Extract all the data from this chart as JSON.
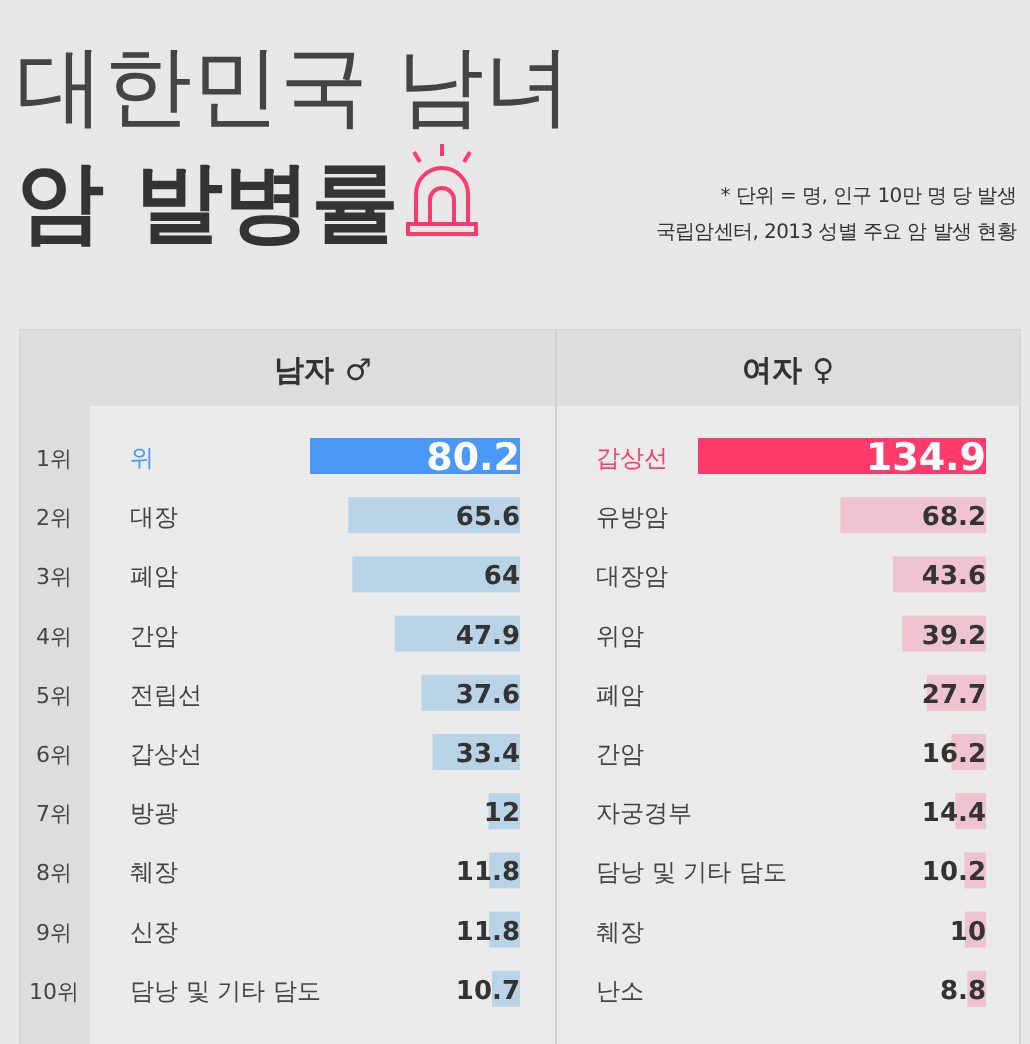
{
  "chart_data": [
    {
      "type": "other",
      "title": "대한민국 남녀",
      "subtitle": "암 발병률",
      "annotations": [
        "* 단위 = 명, 인구 10만 명 당 발생",
        "국립암센터, 2013 성별 주요 암 발생 현황"
      ]
    },
    {
      "type": "bar",
      "orientation": "horizontal",
      "title": "남자 ♂",
      "categories": [
        "위",
        "대장",
        "폐암",
        "간암",
        "전립선",
        "갑상선",
        "방광",
        "췌장",
        "신장",
        "담낭 및 기타 담도"
      ],
      "values": [
        80.2,
        65.6,
        64,
        47.9,
        37.6,
        33.4,
        12,
        11.8,
        11.8,
        10.7
      ],
      "colors": [
        "#4a98f7",
        "#b8d4e6",
        "#b8d4e6",
        "#b8d4e6",
        "#b8d4e6",
        "#b8d4e6",
        "#b8d4e6",
        "#b8d4e6",
        "#b8d4e6",
        "#b8d4e6"
      ],
      "data_labels": true,
      "annotations": [
        "1위",
        "2위",
        "3위",
        "4위",
        "5위",
        "6위",
        "7위",
        "8위",
        "9위",
        "10위"
      ]
    },
    {
      "type": "bar",
      "orientation": "horizontal",
      "title": "여자 ♀",
      "categories": [
        "갑상선",
        "유방암",
        "대장암",
        "위암",
        "폐암",
        "간암",
        "자궁경부",
        "담낭 및 기타 담도",
        "췌장",
        "난소"
      ],
      "values": [
        134.9,
        68.2,
        43.6,
        39.2,
        27.7,
        16.2,
        14.4,
        10.2,
        10,
        8.8
      ],
      "colors": [
        "#ff3b6b",
        "#efc3cf",
        "#efc3cf",
        "#efc3cf",
        "#efc3cf",
        "#efc3cf",
        "#efc3cf",
        "#efc3cf",
        "#efc3cf",
        "#efc3cf"
      ],
      "data_labels": true
    }
  ]
}
